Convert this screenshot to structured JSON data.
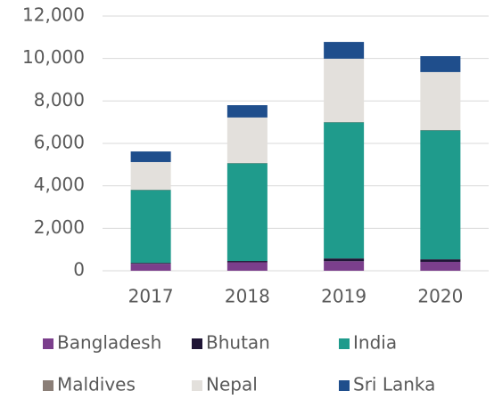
{
  "chart_data": {
    "type": "bar",
    "stacked": true,
    "categories": [
      "2017",
      "2018",
      "2019",
      "2020"
    ],
    "series": [
      {
        "name": "Bangladesh",
        "color": "#7b3f8c",
        "values": [
          330,
          400,
          450,
          420
        ]
      },
      {
        "name": "Bhutan",
        "color": "#1f1535",
        "values": [
          40,
          60,
          130,
          120
        ]
      },
      {
        "name": "India",
        "color": "#1f9b8c",
        "values": [
          3430,
          4600,
          6410,
          6070
        ]
      },
      {
        "name": "Maldives",
        "color": "#8a7e77",
        "values": [
          20,
          20,
          20,
          20
        ]
      },
      {
        "name": "Nepal",
        "color": "#e3e0dc",
        "values": [
          1300,
          2140,
          2980,
          2730
        ]
      },
      {
        "name": "Sri Lanka",
        "color": "#1f4e8c",
        "values": [
          500,
          580,
          790,
          750
        ]
      }
    ],
    "ylim": [
      0,
      12000
    ],
    "yticks": [
      0,
      {
        "value": 2000,
        "label": "2,000"
      },
      {
        "value": 4000,
        "label": "4,000"
      },
      {
        "value": 6000,
        "label": "6,000"
      },
      {
        "value": 8000,
        "label": "8,000"
      },
      {
        "value": 10000,
        "label": "10,000"
      },
      {
        "value": 12000,
        "label": "12,000"
      }
    ],
    "grid": true
  }
}
